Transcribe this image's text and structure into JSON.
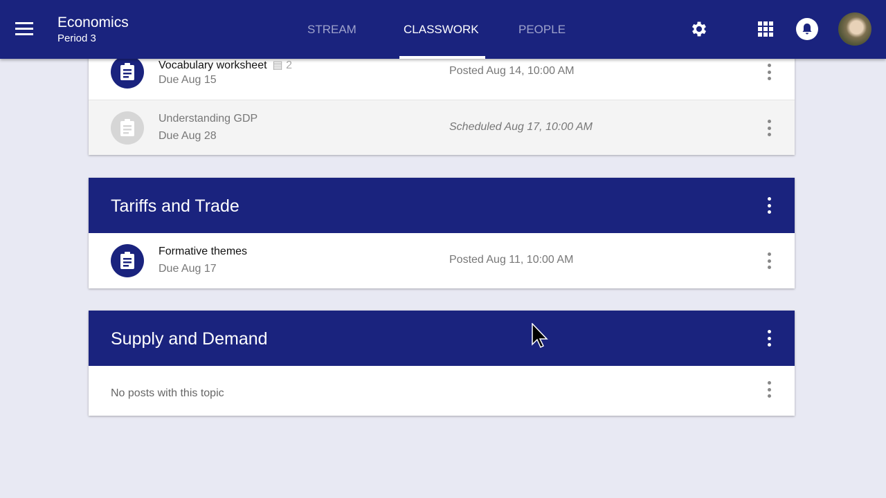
{
  "header": {
    "title": "Economics",
    "subtitle": "Period 3",
    "tabs": [
      {
        "label": "STREAM"
      },
      {
        "label": "CLASSWORK",
        "active": true
      },
      {
        "label": "PEOPLE"
      }
    ],
    "icons": [
      "menu-icon",
      "settings-icon",
      "apps-icon",
      "notifications-icon",
      "avatar"
    ]
  },
  "colors": {
    "primary": "#1a237e"
  },
  "partial_topic": {
    "items": [
      {
        "title": "Vocabulary worksheet",
        "comments": "2",
        "due": "Due Aug 15",
        "status": "Posted Aug 14, 10:00 AM"
      },
      {
        "title": "Understanding GDP",
        "due": "Due Aug 28",
        "status": "Scheduled Aug 17, 10:00 AM"
      }
    ]
  },
  "topics": [
    {
      "title": "Tariffs and Trade",
      "items": [
        {
          "title": "Formative themes",
          "due": "Due Aug 17",
          "status": "Posted Aug 11, 10:00 AM"
        }
      ]
    },
    {
      "title": "Supply and Demand",
      "empty": "No posts with this topic"
    }
  ]
}
